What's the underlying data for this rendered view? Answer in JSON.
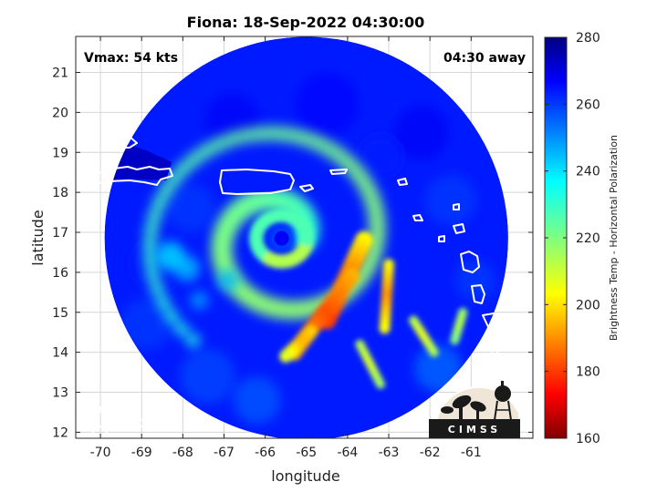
{
  "chart_data": {
    "type": "heatmap",
    "title": "Fiona: 18-Sep-2022 04:30:00",
    "xlabel": "longitude",
    "ylabel": "latitude",
    "xlim": [
      -70.6,
      -59.5
    ],
    "ylim": [
      11.85,
      21.9
    ],
    "x_ticks": [
      -70,
      -69,
      -68,
      -67,
      -66,
      -65,
      -64,
      -63,
      -62,
      -61
    ],
    "y_ticks": [
      12,
      13,
      14,
      15,
      16,
      17,
      18,
      19,
      20,
      21
    ],
    "grid": true,
    "annotations": {
      "left": "Vmax: 54 kts",
      "right": "04:30 away"
    },
    "colorbar": {
      "label": "Brightness Temp - Horizontal Polarization",
      "min": 160,
      "max": 280,
      "ticks": [
        160,
        180,
        200,
        220,
        240,
        260,
        280
      ],
      "colormap": "jet"
    },
    "storm_center": {
      "lon": -65.6,
      "lat": 16.85
    },
    "swath": {
      "center_lon": -65.0,
      "center_lat": 16.85,
      "radius_deg": 4.9
    },
    "features": [
      {
        "kind": "eye",
        "lon": -65.6,
        "lat": 16.85,
        "value": 258
      },
      {
        "kind": "eyewall-ring",
        "lon": -65.3,
        "lat": 16.8,
        "value": 218
      },
      {
        "kind": "rainband",
        "lon": -63.9,
        "lat": 15.5,
        "value": 185
      },
      {
        "kind": "rainband",
        "lon": -64.4,
        "lat": 14.9,
        "value": 180
      },
      {
        "kind": "rainband",
        "lon": -63.2,
        "lat": 15.6,
        "value": 190
      },
      {
        "kind": "rainband",
        "lon": -63.5,
        "lat": 16.6,
        "value": 200
      },
      {
        "kind": "rainband",
        "lon": -64.8,
        "lat": 14.2,
        "value": 195
      },
      {
        "kind": "rainband",
        "lon": -62.8,
        "lat": 14.7,
        "value": 210
      },
      {
        "kind": "cold-land",
        "lon": -69.4,
        "lat": 18.7,
        "value": 272
      },
      {
        "kind": "warm-land",
        "lon": -66.3,
        "lat": 18.2,
        "value": 262
      }
    ]
  },
  "logo": {
    "text": "CIMSS",
    "colors": {
      "bar": "#1a1a1a",
      "sky": "#efe6d7",
      "arc": "#ffffff"
    }
  },
  "colors": {
    "jet": [
      "#000080",
      "#0000ff",
      "#0080ff",
      "#00ffff",
      "#80ff80",
      "#ffff00",
      "#ff8000",
      "#ff0000",
      "#800000"
    ],
    "coast": "#ffffff",
    "grid": "#d6d6d6"
  }
}
